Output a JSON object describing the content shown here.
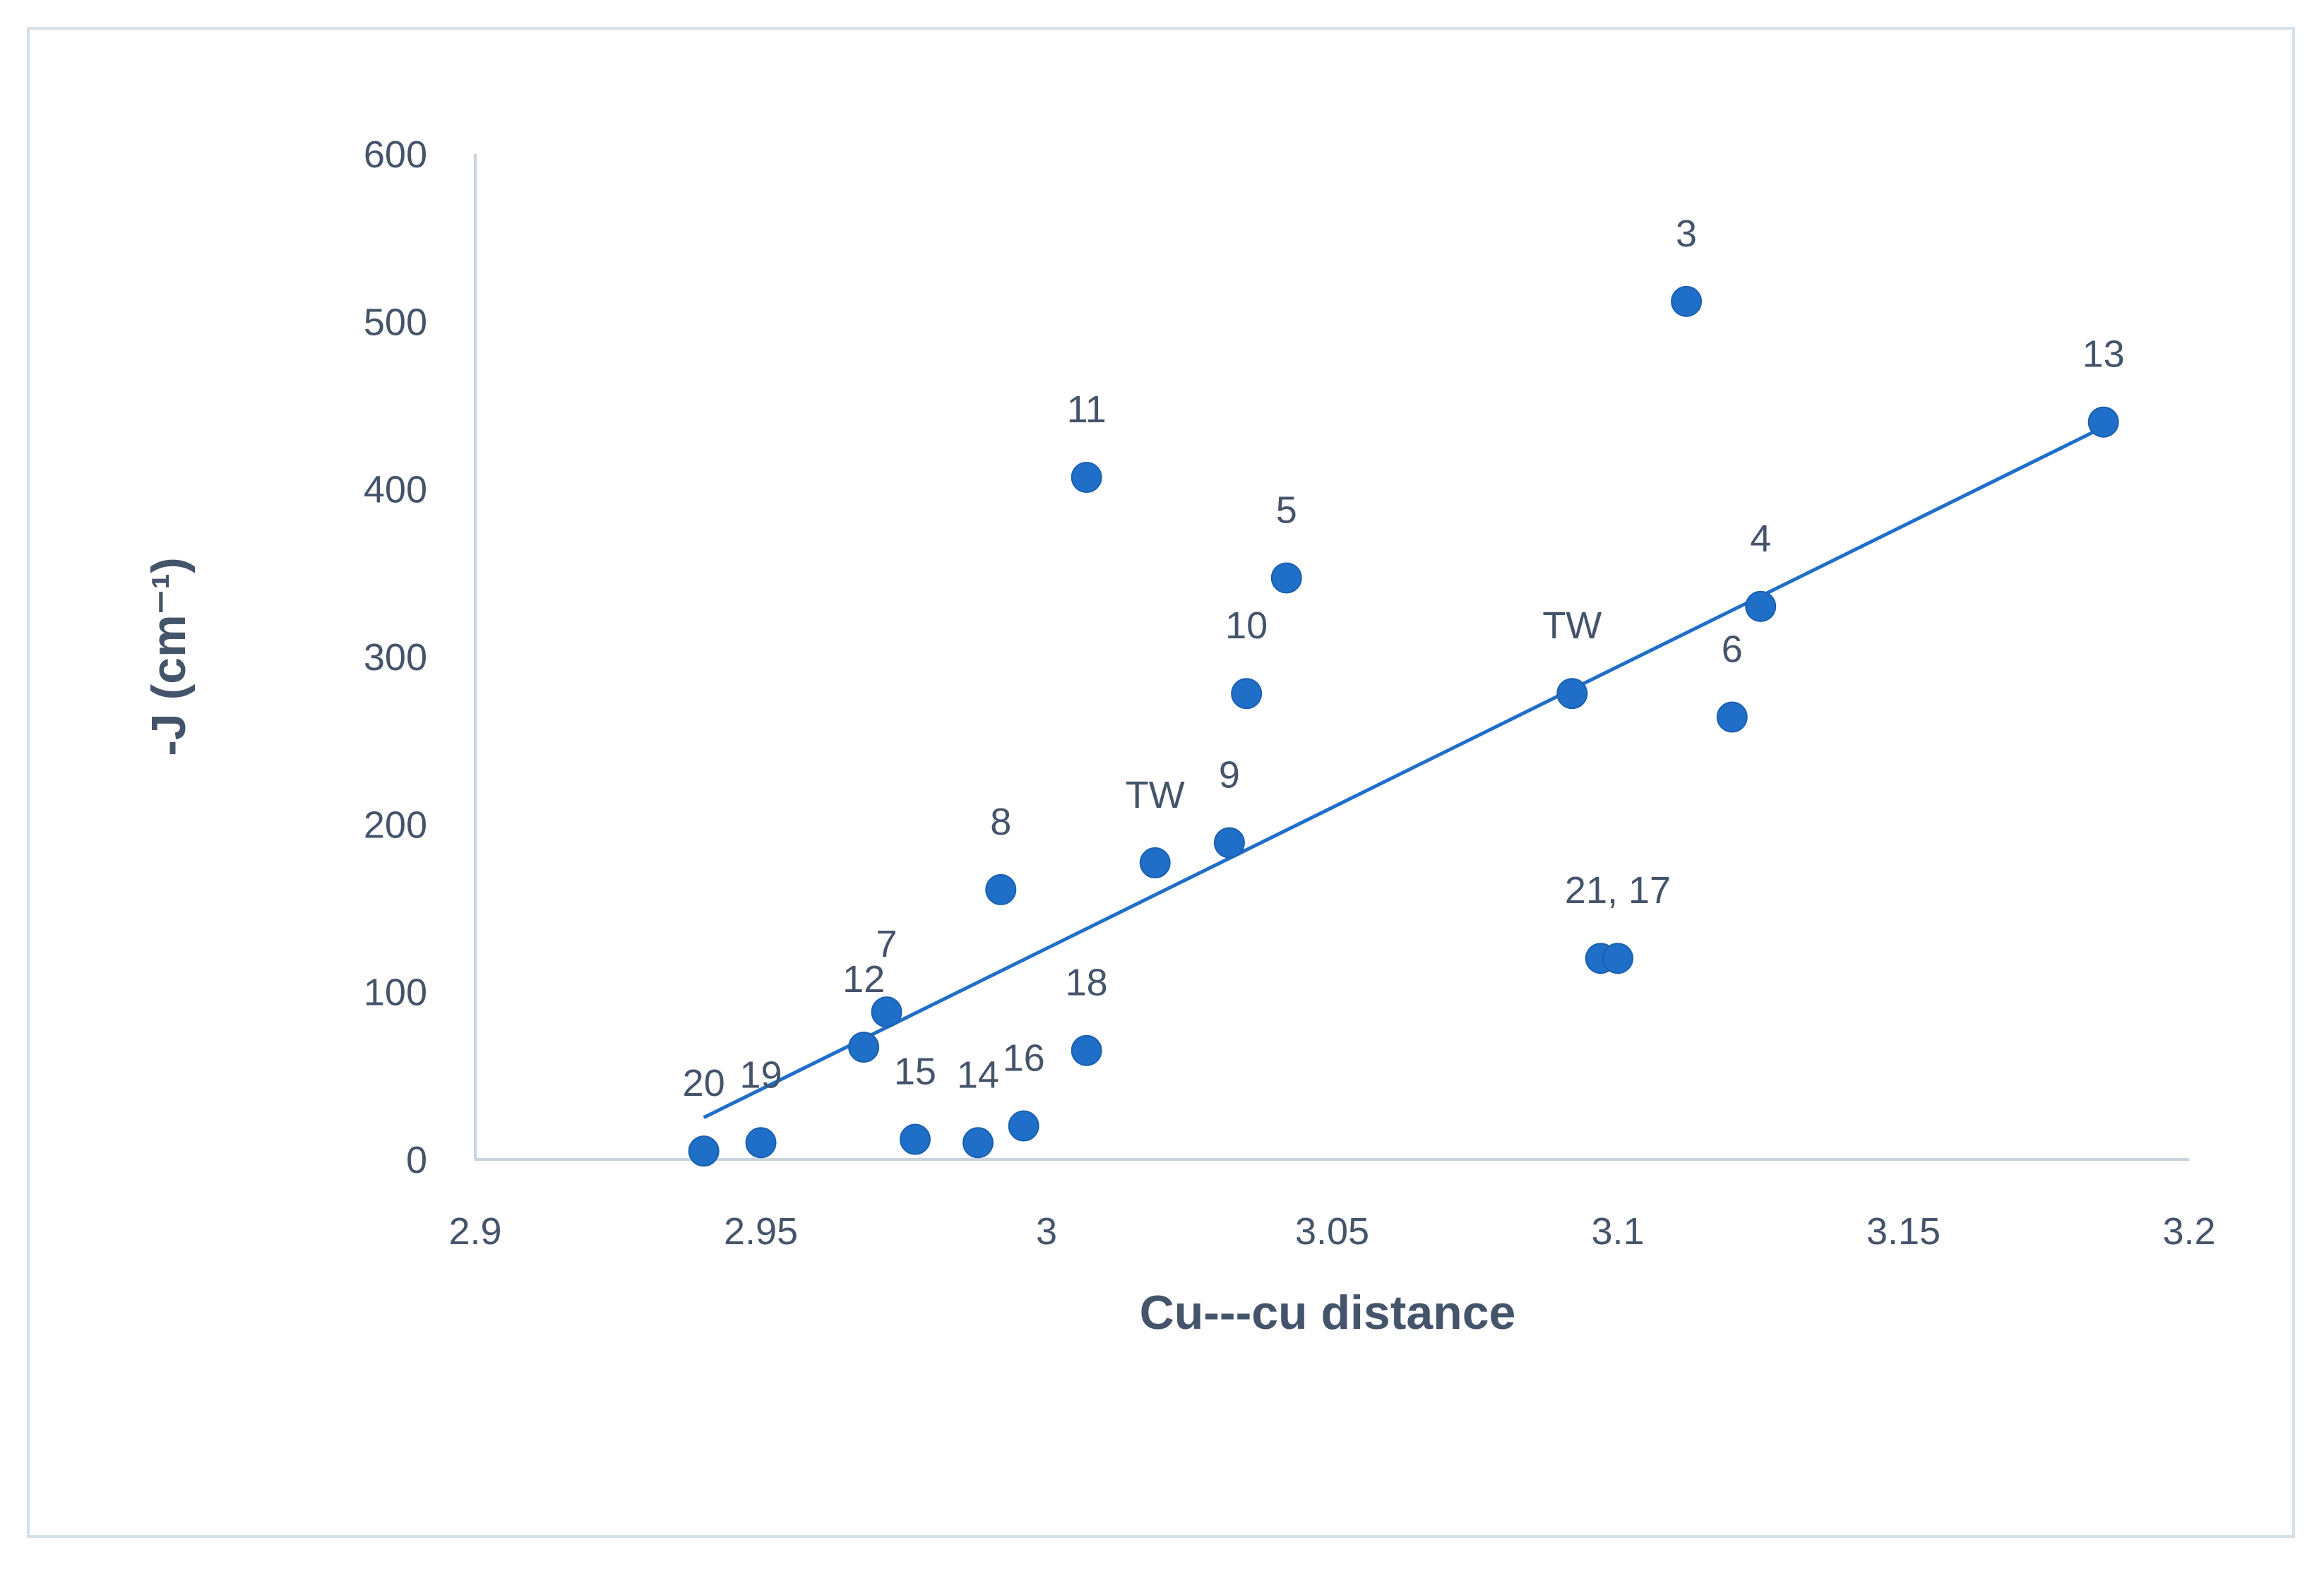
{
  "chart_data": {
    "type": "scatter",
    "title": "",
    "xlabel": "Cu---cu  distance",
    "ylabel": "-J (cm⁻¹)",
    "xlim": [
      2.9,
      3.2
    ],
    "ylim": [
      0,
      600
    ],
    "x_ticks": [
      "2.9",
      "2.95",
      "3",
      "3.05",
      "3.1",
      "3.15",
      "3.2"
    ],
    "y_ticks": [
      "0",
      "100",
      "200",
      "300",
      "400",
      "500",
      "600"
    ],
    "grid": false,
    "legend": "none",
    "marker_color": "#1f6fc9",
    "trendline_color": "#1f6fc9",
    "axis_color": "#c9d3dd",
    "text_color": "#44546a",
    "points": [
      {
        "x": 2.94,
        "y": 5,
        "label": "20"
      },
      {
        "x": 2.95,
        "y": 10,
        "label": "19"
      },
      {
        "x": 2.968,
        "y": 67,
        "label": "12"
      },
      {
        "x": 2.972,
        "y": 88,
        "label": "7"
      },
      {
        "x": 2.977,
        "y": 12,
        "label": "15"
      },
      {
        "x": 2.988,
        "y": 10,
        "label": "14"
      },
      {
        "x": 2.992,
        "y": 161,
        "label": "8"
      },
      {
        "x": 2.996,
        "y": 20,
        "label": "16"
      },
      {
        "x": 3.007,
        "y": 407,
        "label": "11"
      },
      {
        "x": 3.007,
        "y": 65,
        "label": "18"
      },
      {
        "x": 3.019,
        "y": 177,
        "label": "TW"
      },
      {
        "x": 3.032,
        "y": 189,
        "label": "9"
      },
      {
        "x": 3.035,
        "y": 278,
        "label": "10"
      },
      {
        "x": 3.042,
        "y": 347,
        "label": "5"
      },
      {
        "x": 3.092,
        "y": 278,
        "label": "TW"
      },
      {
        "x": 3.097,
        "y": 120,
        "label": ""
      },
      {
        "x": 3.1,
        "y": 120,
        "label": "21, 17"
      },
      {
        "x": 3.112,
        "y": 512,
        "label": "3"
      },
      {
        "x": 3.12,
        "y": 264,
        "label": "6"
      },
      {
        "x": 3.125,
        "y": 330,
        "label": "4"
      },
      {
        "x": 3.185,
        "y": 440,
        "label": "13"
      }
    ],
    "trendline": {
      "type": "linear",
      "x_range": [
        2.94,
        3.185
      ],
      "y_start": 25,
      "y_end": 437
    }
  }
}
